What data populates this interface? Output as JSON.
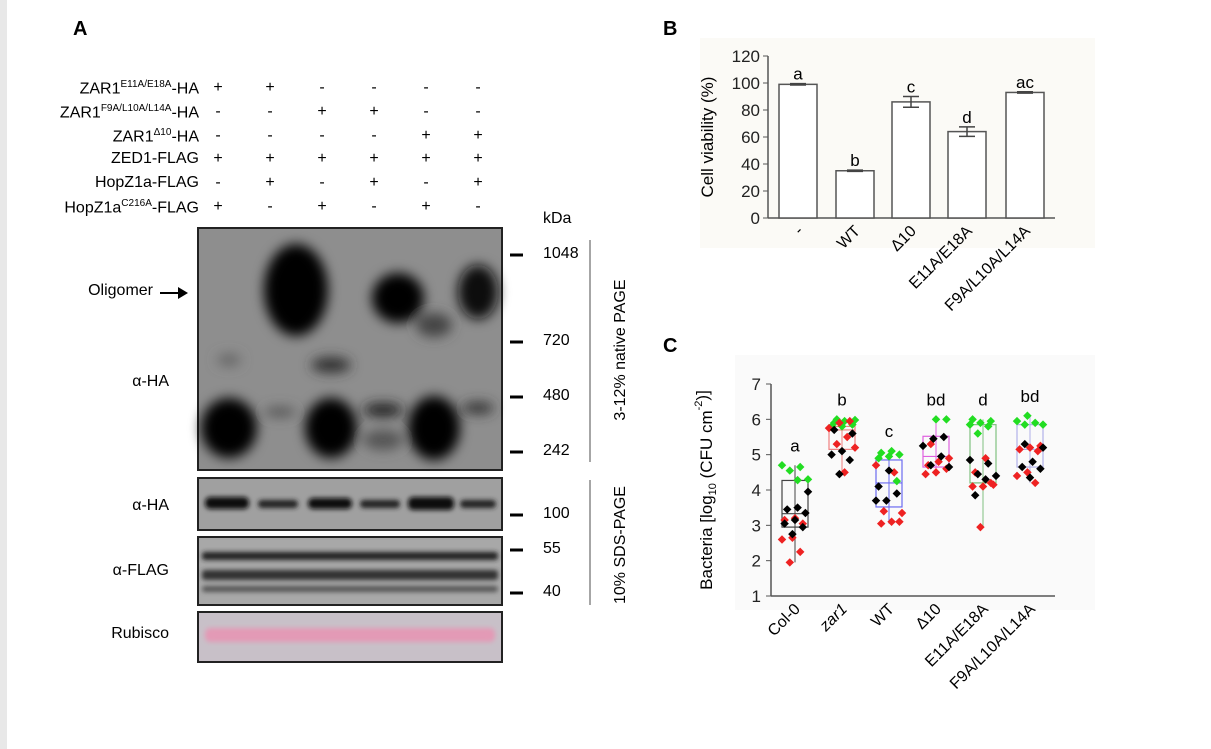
{
  "panelA": {
    "label": "A",
    "conditions": [
      {
        "name": "ZAR1",
        "sup": "E11A/E18A",
        "suffix": "-HA",
        "signs": [
          "+",
          "+",
          "-",
          "-",
          "-",
          "-"
        ]
      },
      {
        "name": "ZAR1",
        "sup": "F9A/L10A/L14A",
        "suffix": "-HA",
        "signs": [
          "-",
          "-",
          "+",
          "+",
          "-",
          "-"
        ]
      },
      {
        "name": "ZAR1",
        "sup": "Δ10",
        "suffix": "-HA",
        "signs": [
          "-",
          "-",
          "-",
          "-",
          "+",
          "+"
        ]
      },
      {
        "name": "ZED1-FLAG",
        "sup": "",
        "suffix": "",
        "signs": [
          "+",
          "+",
          "+",
          "+",
          "+",
          "+"
        ]
      },
      {
        "name": "HopZ1a-FLAG",
        "sup": "",
        "suffix": "",
        "signs": [
          "-",
          "+",
          "-",
          "+",
          "-",
          "+"
        ]
      },
      {
        "name": "HopZ1a",
        "sup": "C216A",
        "suffix": "-FLAG",
        "signs": [
          "+",
          "-",
          "+",
          "-",
          "+",
          "-"
        ]
      }
    ],
    "oligomer_label": "Oligomer",
    "blot_labels": [
      "α-HA",
      "α-HA",
      "α-FLAG",
      "Rubisco"
    ],
    "kda_label": "kDa",
    "markers": [
      "1048",
      "720",
      "480",
      "242",
      "100",
      "55",
      "40"
    ],
    "native_label": "3-12% native PAGE",
    "sds_label": "10% SDS-PAGE",
    "rubisco_color": "#e8b4c4"
  },
  "chart_data": [
    {
      "panel": "B",
      "type": "bar",
      "ylabel": "Cell viability (%)",
      "xlabel": "",
      "ylim": [
        0,
        120
      ],
      "yticks": [
        "0",
        "20",
        "40",
        "60",
        "80",
        "100",
        "120"
      ],
      "categories": [
        "-",
        "WT",
        "Δ10",
        "E11A/E18A",
        "F9A/L10A/L14A"
      ],
      "values": [
        99,
        35,
        86,
        64,
        93
      ],
      "errors": [
        0.5,
        0.5,
        4,
        3.5,
        0.5
      ],
      "annotations": [
        "a",
        "b",
        "c",
        "d",
        "ac"
      ],
      "bar_color": "#ffffff",
      "grid": false
    },
    {
      "panel": "C",
      "type": "scatter",
      "subtype": "box-with-points",
      "ylabel_main": "Bacteria [log",
      "ylabel_sub": "10",
      "ylabel_mid": " (CFU cm",
      "ylabel_sup": "-2",
      "ylabel_end": ")]",
      "ylim": [
        1,
        7
      ],
      "yticks": [
        "1",
        "2",
        "3",
        "4",
        "5",
        "6",
        "7"
      ],
      "categories": [
        "Col-0",
        "zar1",
        "WT",
        "Δ10",
        "E11A/E18A",
        "F9A/L10A/L14A"
      ],
      "annotations": [
        "a",
        "b",
        "c",
        "bd",
        "d",
        "bd"
      ],
      "boxes": [
        {
          "q1": 2.95,
          "median": 3.33,
          "q3": 4.27,
          "min": 1.95,
          "max": 4.7,
          "color": "#444444"
        },
        {
          "q1": 5.15,
          "median": 5.7,
          "q3": 5.8,
          "min": 4.45,
          "max": 6.0,
          "color": "#f08080"
        },
        {
          "q1": 3.52,
          "median": 4.2,
          "q3": 4.85,
          "min": 3.05,
          "max": 5.1,
          "color": "#6a6af0"
        },
        {
          "q1": 4.65,
          "median": 4.95,
          "q3": 5.52,
          "min": 4.45,
          "max": 6.0,
          "color": "#e060e0"
        },
        {
          "q1": 4.2,
          "median": 4.2,
          "q3": 5.85,
          "min": 2.95,
          "max": 6.0,
          "color": "#80c080"
        },
        {
          "q1": 4.65,
          "median": 5.15,
          "q3": 5.85,
          "min": 4.2,
          "max": 6.1,
          "color": "#b0b0e8"
        }
      ],
      "series": [
        {
          "color": "#22dd22",
          "values": [
            [
              4.7,
              4.65,
              4.55,
              4.3,
              4.28
            ],
            [
              6.0,
              5.98,
              5.95,
              5.9,
              5.85,
              5.8,
              5.8
            ],
            [
              5.1,
              5.05,
              5.0,
              4.95,
              4.9,
              4.25
            ],
            [
              6.0,
              6.0
            ],
            [
              6.0,
              5.95,
              5.9,
              5.85,
              5.8,
              5.6
            ],
            [
              6.1,
              5.95,
              5.9,
              5.85,
              5.85
            ]
          ]
        },
        {
          "color": "#ee2222",
          "values": [
            [
              3.2,
              3.15,
              3.05,
              2.65,
              2.6,
              2.25,
              1.95
            ],
            [
              5.95,
              5.9,
              5.75,
              5.5,
              5.3,
              5.2,
              4.5
            ],
            [
              4.7,
              4.5,
              3.4,
              3.35,
              3.1,
              3.05,
              3.1
            ],
            [
              5.3,
              4.9,
              4.8,
              4.7,
              4.6,
              4.5,
              4.45
            ],
            [
              4.9,
              4.5,
              4.15,
              4.1,
              4.1,
              4.2,
              2.95
            ],
            [
              5.25,
              5.2,
              5.15,
              5.1,
              4.5,
              4.4,
              4.2
            ]
          ]
        },
        {
          "color": "#000000",
          "values": [
            [
              3.95,
              3.5,
              3.45,
              3.35,
              3.15,
              3.05,
              2.95,
              2.75
            ],
            [
              5.7,
              5.6,
              5.1,
              5.0,
              4.85,
              4.45
            ],
            [
              4.55,
              4.1,
              3.9,
              3.7,
              3.7
            ],
            [
              5.5,
              5.45,
              5.25,
              4.95,
              4.7,
              4.65
            ],
            [
              4.85,
              4.75,
              4.45,
              4.4,
              4.3,
              3.85
            ],
            [
              5.3,
              5.2,
              4.8,
              4.65,
              4.6,
              4.35
            ]
          ]
        }
      ],
      "grid": false
    }
  ]
}
